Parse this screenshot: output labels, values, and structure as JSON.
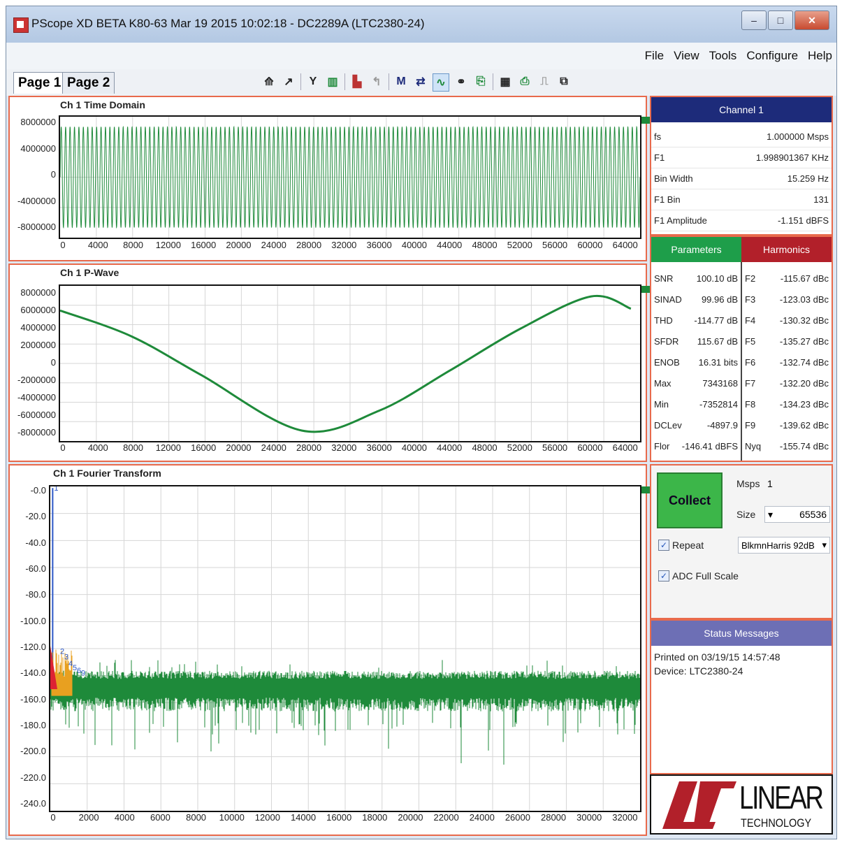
{
  "window": {
    "title": "PScope XD BETA K80-63 Mar 19 2015 10:02:18 - DC2289A (LTC2380-24)",
    "controls": {
      "minimize": "‒",
      "maximize": "□",
      "close": "✕"
    }
  },
  "menu": [
    "File",
    "View",
    "Tools",
    "Configure",
    "Help"
  ],
  "tabs": [
    "Page 1",
    "Page 2"
  ],
  "toolbar": {
    "icons": [
      "run-icon",
      "run-step-icon",
      "y-cursor-icon",
      "bars-icon",
      "histogram-icon",
      "spectrum-icon",
      "markers-icon",
      "arrows-icon",
      "wave-icon",
      "link-icon",
      "export-icon",
      "save-icon",
      "print-icon",
      "pulse-icon",
      "graph-icon"
    ]
  },
  "time_domain": {
    "title": "Ch 1 Time Domain",
    "y_ticks": [
      "8000000",
      "4000000",
      "0",
      "-4000000",
      "-8000000"
    ],
    "x_ticks": [
      "0",
      "4000",
      "8000",
      "12000",
      "16000",
      "20000",
      "24000",
      "28000",
      "32000",
      "36000",
      "40000",
      "44000",
      "48000",
      "52000",
      "56000",
      "60000",
      "64000"
    ]
  },
  "p_wave": {
    "title": "Ch 1 P-Wave",
    "y_ticks": [
      "8000000",
      "6000000",
      "4000000",
      "2000000",
      "0",
      "-2000000",
      "-4000000",
      "-6000000",
      "-8000000"
    ],
    "x_ticks": [
      "0",
      "4000",
      "8000",
      "12000",
      "16000",
      "20000",
      "24000",
      "28000",
      "32000",
      "36000",
      "40000",
      "44000",
      "48000",
      "52000",
      "56000",
      "60000",
      "64000"
    ]
  },
  "fft": {
    "title": "Ch 1 Fourier Transform",
    "y_ticks": [
      "-0.0",
      "-20.0",
      "-40.0",
      "-60.0",
      "-80.0",
      "-100.0",
      "-120.0",
      "-140.0",
      "-160.0",
      "-180.0",
      "-200.0",
      "-220.0",
      "-240.0"
    ],
    "x_ticks": [
      "0",
      "2000",
      "4000",
      "6000",
      "8000",
      "10000",
      "12000",
      "14000",
      "16000",
      "18000",
      "20000",
      "22000",
      "24000",
      "26000",
      "28000",
      "30000",
      "32000"
    ],
    "harmonic_marks": [
      "1",
      "2",
      "3",
      "4",
      "5",
      "6",
      "9"
    ]
  },
  "chart_data": [
    {
      "type": "line",
      "title": "Ch 1 Time Domain",
      "xlim": [
        0,
        65536
      ],
      "ylim": [
        -8800000,
        8800000
      ],
      "description_series": {
        "name": "Ch 1",
        "amplitude": 7340000,
        "cycles": 131
      }
    },
    {
      "type": "line",
      "title": "Ch 1 P-Wave",
      "xlim": [
        0,
        65536
      ],
      "ylim": [
        -8500000,
        8500000
      ],
      "series": [
        {
          "name": "Ch 1",
          "x": [
            0,
            8000,
            16000,
            27300,
            36000,
            44000,
            52000,
            60000,
            64500
          ],
          "y": [
            5800000,
            3000000,
            -1300000,
            -7350000,
            -5200000,
            -800000,
            3800000,
            7340000,
            6000000
          ]
        }
      ]
    },
    {
      "type": "line",
      "title": "Ch 1 Fourier Transform",
      "xlim": [
        0,
        32768
      ],
      "ylim": [
        -240,
        0
      ],
      "series": [
        {
          "name": "Ch 1",
          "noise_floor": -146.41,
          "fundamental": {
            "x": 131,
            "y": -1.151
          }
        }
      ]
    }
  ],
  "channel": {
    "header": "Channel 1",
    "rows": [
      {
        "k": "fs",
        "v": "1.000000 Msps"
      },
      {
        "k": "F1",
        "v": "1.998901367 KHz"
      },
      {
        "k": "Bin Width",
        "v": "15.259 Hz"
      },
      {
        "k": "F1 Bin",
        "v": "131"
      },
      {
        "k": "F1 Amplitude",
        "v": "-1.151 dBFS"
      }
    ]
  },
  "parameters": {
    "header": "Parameters",
    "rows": [
      {
        "k": "SNR",
        "v": "100.10 dB"
      },
      {
        "k": "SINAD",
        "v": "99.96 dB"
      },
      {
        "k": "THD",
        "v": "-114.77 dB"
      },
      {
        "k": "SFDR",
        "v": "115.67 dB"
      },
      {
        "k": "ENOB",
        "v": "16.31 bits"
      },
      {
        "k": "Max",
        "v": "7343168"
      },
      {
        "k": "Min",
        "v": "-7352814"
      },
      {
        "k": "DCLev",
        "v": "-4897.9"
      },
      {
        "k": "Flor",
        "v": "-146.41 dBFS"
      }
    ]
  },
  "harmonics": {
    "header": "Harmonics",
    "rows": [
      {
        "k": "F2",
        "v": "-115.67 dBc"
      },
      {
        "k": "F3",
        "v": "-123.03 dBc"
      },
      {
        "k": "F4",
        "v": "-130.32 dBc"
      },
      {
        "k": "F5",
        "v": "-135.27 dBc"
      },
      {
        "k": "F6",
        "v": "-132.74 dBc"
      },
      {
        "k": "F7",
        "v": "-132.20 dBc"
      },
      {
        "k": "F8",
        "v": "-134.23 dBc"
      },
      {
        "k": "F9",
        "v": "-139.62 dBc"
      },
      {
        "k": "Nyq",
        "v": "-155.74 dBc"
      }
    ]
  },
  "collect": {
    "button": "Collect",
    "msps_label": "Msps",
    "msps_value": "1",
    "size_label": "Size",
    "size_value": "65536",
    "repeat_label": "Repeat",
    "window_value": "BlkmnHarris 92dB",
    "adc_full_scale_label": "ADC Full Scale"
  },
  "status": {
    "header": "Status Messages",
    "lines": [
      "Printed on 03/19/15 14:57:48",
      "Device: LTC2380-24"
    ]
  },
  "logo": {
    "line1": "LINEAR",
    "line2": "TECHNOLOGY"
  },
  "colors": {
    "trace": "#1e8a3a",
    "panel_border": "#e86a4c",
    "navy": "#1d2b7a",
    "green": "#1e9e4a",
    "red": "#b2202a"
  }
}
